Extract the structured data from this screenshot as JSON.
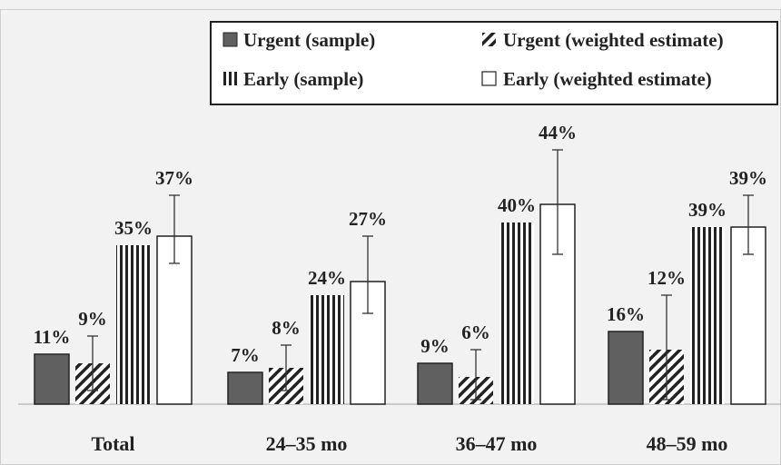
{
  "chart_data": {
    "type": "bar",
    "categories": [
      "Total",
      "24–35 mo",
      "36–47 mo",
      "48–59 mo"
    ],
    "series": [
      {
        "name": "Urgent (sample)",
        "values": [
          11,
          7,
          9,
          16
        ],
        "pattern": "solid",
        "labels": [
          "11%",
          "7%",
          "9%",
          "16%"
        ]
      },
      {
        "name": "Urgent (weighted estimate)",
        "values": [
          9,
          8,
          6,
          12
        ],
        "pattern": "diagonal",
        "labels": [
          "9%",
          "8%",
          "6%",
          "12%"
        ],
        "error": [
          [
            3,
            15
          ],
          [
            3,
            13
          ],
          [
            1,
            12
          ],
          [
            1,
            24
          ]
        ]
      },
      {
        "name": "Early (sample)",
        "values": [
          35,
          24,
          40,
          39
        ],
        "pattern": "vertical",
        "labels": [
          "35%",
          "24%",
          "40%",
          "39%"
        ]
      },
      {
        "name": "Early (weighted estimate)",
        "values": [
          37,
          27,
          44,
          39
        ],
        "pattern": "hollow",
        "labels": [
          "37%",
          "27%",
          "44%",
          "39%"
        ],
        "error": [
          [
            31,
            46
          ],
          [
            20,
            37
          ],
          [
            33,
            56
          ],
          [
            33,
            46
          ]
        ]
      }
    ],
    "ylim": [
      0,
      60
    ],
    "grid": false,
    "legend": "top-right",
    "colors": {
      "solid": "#606060",
      "stroke": "#222222",
      "hollow": "#ffffff"
    }
  }
}
